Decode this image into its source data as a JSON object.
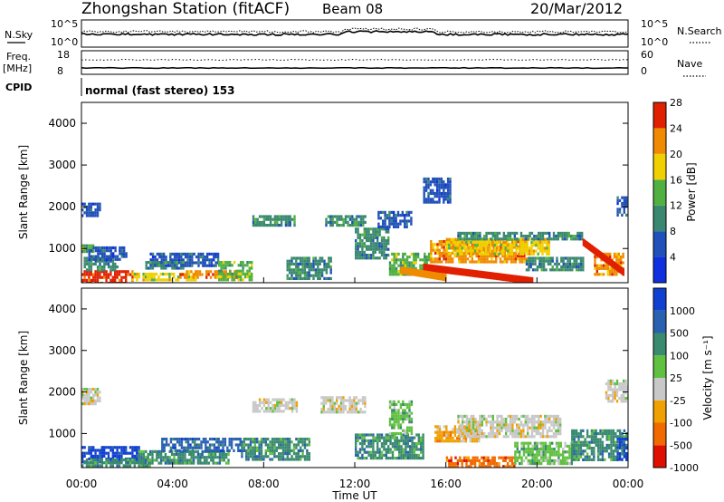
{
  "header": {
    "station": "Zhongshan Station (fitACF)",
    "beam": "Beam 08",
    "date": "20/Mar/2012"
  },
  "noise_panel": {
    "left_label": "N.Sky",
    "right_label": "N.Search",
    "left_ticks": [
      "10^5",
      "10^0"
    ],
    "right_ticks": [
      "10^5",
      "10^0"
    ]
  },
  "freq_panel": {
    "left_label_1": "Freq.",
    "left_label_2": "[MHz]",
    "right_label": "Nave",
    "left_ticks": [
      "18",
      "8"
    ],
    "right_ticks": [
      "60",
      "0"
    ]
  },
  "cpid": {
    "label": "CPID",
    "mode_text": "normal (fast stereo) 153"
  },
  "x_axis": {
    "label": "Time UT",
    "ticks": [
      "00:00",
      "04:00",
      "08:00",
      "12:00",
      "16:00",
      "20:00",
      "00:00"
    ]
  },
  "chart_data": [
    {
      "type": "heatmap",
      "name": "power",
      "ylabel": "Slant Range [km]",
      "ylim": [
        180,
        4500
      ],
      "y_ticks": [
        1000,
        2000,
        3000,
        4000
      ],
      "xlim": [
        0,
        24
      ],
      "colorbar": {
        "label": "Power [dB]",
        "ticks": [
          "4",
          "8",
          "12",
          "16",
          "20",
          "24",
          "28"
        ],
        "colors": [
          "#1030e0",
          "#2050b8",
          "#3a8870",
          "#50b040",
          "#f0d000",
          "#f08a00",
          "#e02000"
        ]
      },
      "patches": [
        {
          "t0": 0.0,
          "t1": 2.2,
          "r0": 200,
          "r1": 480,
          "level": 6
        },
        {
          "t0": 0.0,
          "t1": 0.5,
          "r0": 900,
          "r1": 1100,
          "level": 3
        },
        {
          "t0": 0.1,
          "t1": 1.6,
          "r0": 500,
          "r1": 800,
          "level": 2
        },
        {
          "t0": 0.0,
          "t1": 0.8,
          "r0": 1800,
          "r1": 2100,
          "level": 1
        },
        {
          "t0": 0.3,
          "t1": 2.0,
          "r0": 750,
          "r1": 1050,
          "level": 1
        },
        {
          "t0": 2.2,
          "t1": 5.0,
          "r0": 250,
          "r1": 420,
          "level": 4
        },
        {
          "t0": 4.3,
          "t1": 6.8,
          "r0": 300,
          "r1": 480,
          "level": 5
        },
        {
          "t0": 3.0,
          "t1": 6.0,
          "r0": 600,
          "r1": 900,
          "level": 1
        },
        {
          "t0": 6.0,
          "t1": 7.5,
          "r0": 250,
          "r1": 700,
          "level": 3
        },
        {
          "t0": 7.5,
          "t1": 9.4,
          "r0": 1550,
          "r1": 1800,
          "level": 2
        },
        {
          "t0": 9.0,
          "t1": 11.0,
          "r0": 300,
          "r1": 800,
          "level": 2
        },
        {
          "t0": 10.7,
          "t1": 12.5,
          "r0": 1550,
          "r1": 1800,
          "level": 2
        },
        {
          "t0": 12.0,
          "t1": 13.5,
          "r0": 800,
          "r1": 1500,
          "level": 2
        },
        {
          "t0": 13.0,
          "t1": 14.5,
          "r0": 1500,
          "r1": 1900,
          "level": 1
        },
        {
          "t0": 13.5,
          "t1": 15.3,
          "r0": 400,
          "r1": 900,
          "level": 3
        },
        {
          "t0": 15.3,
          "t1": 19.5,
          "r0": 700,
          "r1": 1200,
          "level": 5
        },
        {
          "t0": 16.0,
          "t1": 20.5,
          "r0": 900,
          "r1": 1250,
          "level": 4
        },
        {
          "t0": 16.5,
          "t1": 22.0,
          "r0": 1200,
          "r1": 1400,
          "level": 2
        },
        {
          "t0": 19.5,
          "t1": 22.0,
          "r0": 500,
          "r1": 800,
          "level": 2
        },
        {
          "t0": 22.5,
          "t1": 23.8,
          "r0": 400,
          "r1": 900,
          "level": 5
        },
        {
          "t0": 23.5,
          "t1": 24.0,
          "r0": 1800,
          "r1": 2250,
          "level": 1
        },
        {
          "t0": 15.0,
          "t1": 16.2,
          "r0": 2100,
          "r1": 2700,
          "level": 1
        },
        {
          "t0": 2.8,
          "t1": 4.5,
          "r0": 500,
          "r1": 700,
          "level": 2
        }
      ],
      "ridges": [
        {
          "t0": 15.0,
          "t1": 19.8,
          "r0": 550,
          "r1": 220,
          "level": 6
        },
        {
          "t0": 14.0,
          "t1": 16.0,
          "r0": 480,
          "r1": 300,
          "level": 5
        },
        {
          "t0": 22.0,
          "t1": 23.8,
          "r0": 1150,
          "r1": 420,
          "level": 6
        }
      ]
    },
    {
      "type": "heatmap",
      "name": "velocity",
      "ylabel": "Slant Range [km]",
      "ylim": [
        180,
        4500
      ],
      "y_ticks": [
        1000,
        2000,
        3000,
        4000
      ],
      "xlim": [
        0,
        24
      ],
      "colorbar": {
        "label": "Velocity [m s⁻¹]",
        "ticks": [
          "1000",
          "500",
          "100",
          "25",
          "-25",
          "-100",
          "-500",
          "-1000"
        ],
        "colors": [
          "#1040d0",
          "#2a60b0",
          "#3a8a70",
          "#60c040",
          "#c8c8c8",
          "#f0a000",
          "#f06a00",
          "#e01000"
        ]
      },
      "patches": [
        {
          "t0": 0.0,
          "t1": 2.5,
          "r0": 300,
          "r1": 700,
          "level": 0
        },
        {
          "t0": 0.0,
          "t1": 3.0,
          "r0": 200,
          "r1": 400,
          "level": 2
        },
        {
          "t0": 0.0,
          "t1": 0.8,
          "r0": 1700,
          "r1": 2100,
          "level": 4
        },
        {
          "t0": 2.5,
          "t1": 6.5,
          "r0": 300,
          "r1": 600,
          "level": 2
        },
        {
          "t0": 3.5,
          "t1": 7.0,
          "r0": 600,
          "r1": 900,
          "level": 1
        },
        {
          "t0": 7.5,
          "t1": 9.5,
          "r0": 1550,
          "r1": 1850,
          "level": 4
        },
        {
          "t0": 7.0,
          "t1": 10.0,
          "r0": 400,
          "r1": 900,
          "level": 2
        },
        {
          "t0": 10.5,
          "t1": 12.5,
          "r0": 1500,
          "r1": 1900,
          "level": 4
        },
        {
          "t0": 12.0,
          "t1": 15.0,
          "r0": 400,
          "r1": 1000,
          "level": 2
        },
        {
          "t0": 15.5,
          "t1": 17.5,
          "r0": 800,
          "r1": 1200,
          "level": 5
        },
        {
          "t0": 16.5,
          "t1": 21.0,
          "r0": 900,
          "r1": 1450,
          "level": 4
        },
        {
          "t0": 16.0,
          "t1": 19.0,
          "r0": 200,
          "r1": 450,
          "level": 6
        },
        {
          "t0": 19.0,
          "t1": 21.5,
          "r0": 300,
          "r1": 800,
          "level": 3
        },
        {
          "t0": 21.5,
          "t1": 24.0,
          "r0": 400,
          "r1": 1100,
          "level": 2
        },
        {
          "t0": 23.0,
          "t1": 24.0,
          "r0": 1800,
          "r1": 2300,
          "level": 4
        },
        {
          "t0": 13.5,
          "t1": 14.5,
          "r0": 1000,
          "r1": 1800,
          "level": 3
        },
        {
          "t0": 23.5,
          "t1": 24.0,
          "r0": 400,
          "r1": 900,
          "level": 0
        }
      ],
      "ridges": []
    }
  ]
}
